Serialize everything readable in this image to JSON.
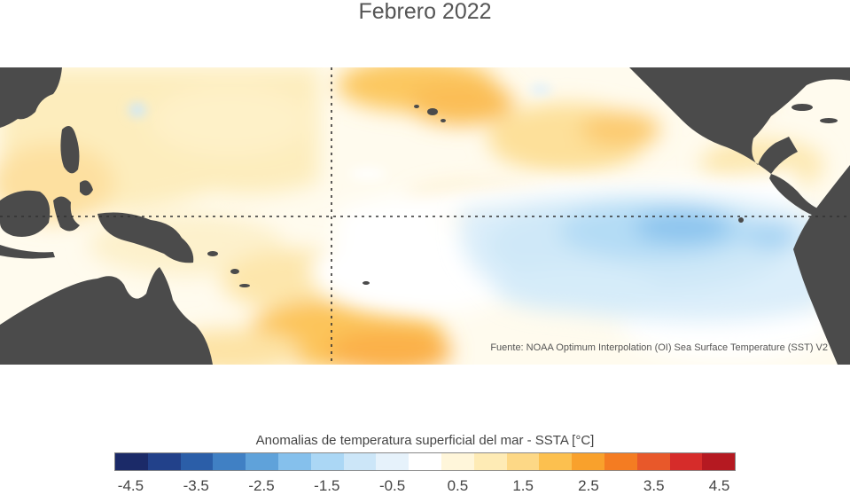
{
  "title": "Febrero 2022",
  "source_note": "Fuente: NOAA Optimum Interpolation (OI) Sea Surface Temperature (SST) V2",
  "colorbar": {
    "title": "Anomalias de temperatura superficial del mar - SSTA  [°C]",
    "colors": [
      "#1b2a68",
      "#22418a",
      "#2b5ea8",
      "#4080c4",
      "#5fa2da",
      "#85c0ec",
      "#abd7f5",
      "#cce6f8",
      "#e6f2fb",
      "#ffffff",
      "#fff6da",
      "#feebb5",
      "#fdd886",
      "#fcc04f",
      "#f9a12c",
      "#f47c22",
      "#e8582a",
      "#d62c2a",
      "#b51921"
    ],
    "tick_labels": [
      "-4.5",
      "-3.5",
      "-2.5",
      "-1.5",
      "-0.5",
      "0.5",
      "1.5",
      "2.5",
      "3.5",
      "4.5"
    ]
  },
  "map": {
    "land_color": "#4b4b4b",
    "reference_lines": [
      "equator",
      "dateline"
    ]
  }
}
